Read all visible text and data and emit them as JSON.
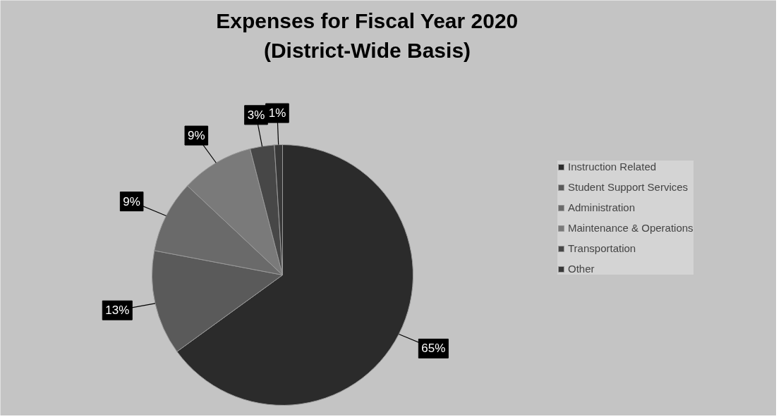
{
  "chart_data": {
    "type": "pie",
    "title": "Expenses for Fiscal Year 2020 (District-Wide Basis)",
    "categories": [
      "Instruction Related",
      "Student Support Services",
      "Administration",
      "Maintenance & Operations",
      "Transportation",
      "Other"
    ],
    "values": [
      65,
      13,
      9,
      9,
      3,
      1
    ],
    "colors": [
      "#2b2b2b",
      "#5a5a5a",
      "#6a6a6a",
      "#7a7a7a",
      "#474747",
      "#383838"
    ],
    "value_labels": [
      "65%",
      "13%",
      "9%",
      "9%",
      "3%",
      "1%"
    ],
    "legend": "right"
  }
}
